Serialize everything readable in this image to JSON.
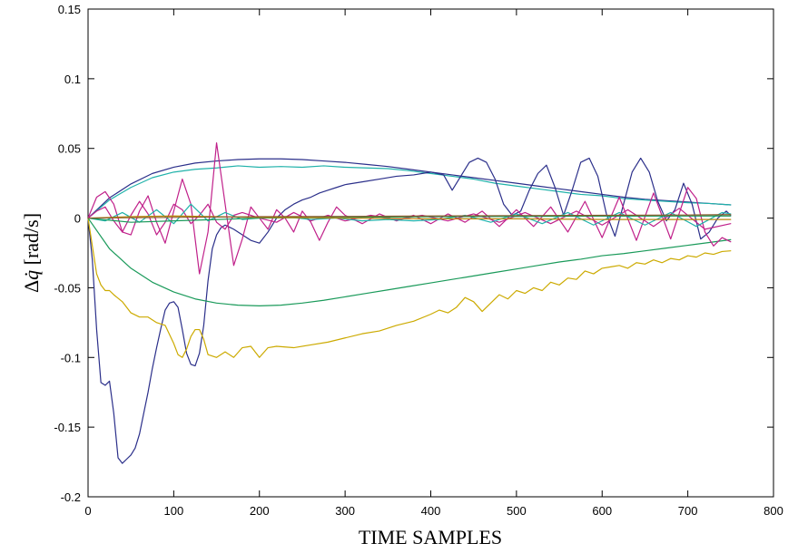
{
  "chart_data": {
    "type": "line",
    "xlabel": "TIME SAMPLES",
    "ylabel": "Δq̇ [rad/s]",
    "ylabel_parts": {
      "symbol": "Δ",
      "var": "q̇",
      "unit": " [rad/s]"
    },
    "xlim": [
      0,
      800
    ],
    "ylim": [
      -0.2,
      0.15
    ],
    "x_ticks": [
      0,
      100,
      200,
      300,
      400,
      500,
      600,
      700,
      800
    ],
    "x_tick_labels": [
      "0",
      "100",
      "200",
      "300",
      "400",
      "500",
      "600",
      "700",
      "800"
    ],
    "y_ticks": [
      -0.2,
      -0.15,
      -0.1,
      -0.05,
      0,
      0.05,
      0.1,
      0.15
    ],
    "y_tick_labels": [
      "-0.2",
      "-0.15",
      "-0.1",
      "-0.05",
      "0",
      "0.05",
      "0.1",
      "0.15"
    ],
    "grid": false,
    "legend": "none",
    "series": [
      {
        "color": "#2b2f8a",
        "x": [
          0,
          25,
          50,
          75,
          100,
          125,
          150,
          175,
          200,
          225,
          250,
          275,
          300,
          325,
          350,
          375,
          400,
          425,
          450,
          475,
          500,
          525,
          550,
          575,
          600,
          625,
          650,
          675,
          700,
          725,
          750
        ],
        "y": [
          0,
          0.0145,
          0.0245,
          0.032,
          0.0365,
          0.0395,
          0.041,
          0.042,
          0.0425,
          0.0425,
          0.042,
          0.041,
          0.04,
          0.0385,
          0.037,
          0.035,
          0.033,
          0.031,
          0.029,
          0.027,
          0.025,
          0.023,
          0.021,
          0.019,
          0.017,
          0.015,
          0.0135,
          0.0125,
          0.0115,
          0.0105,
          0.0095
        ]
      },
      {
        "color": "#20b2aa",
        "x": [
          0,
          25,
          50,
          75,
          100,
          125,
          150,
          175,
          200,
          225,
          250,
          275,
          300,
          325,
          350,
          375,
          400,
          425,
          450,
          475,
          500,
          525,
          550,
          575,
          600,
          625,
          650,
          675,
          700,
          725,
          750
        ],
        "y": [
          0,
          0.013,
          0.022,
          0.029,
          0.033,
          0.035,
          0.036,
          0.0375,
          0.0365,
          0.037,
          0.0365,
          0.0375,
          0.0365,
          0.036,
          0.0355,
          0.034,
          0.032,
          0.03,
          0.028,
          0.025,
          0.023,
          0.021,
          0.019,
          0.017,
          0.016,
          0.014,
          0.013,
          0.012,
          0.011,
          0.0105,
          0.0095
        ]
      },
      {
        "color": "#2b2f8a",
        "x": [
          0,
          5,
          10,
          15,
          20,
          25,
          30,
          35,
          40,
          45,
          50,
          55,
          60,
          65,
          70,
          75,
          80,
          85,
          90,
          95,
          100,
          105,
          110,
          115,
          120,
          125,
          130,
          135,
          140,
          145,
          150,
          155,
          160,
          170,
          180,
          190,
          200,
          210,
          220,
          230,
          240,
          250,
          260,
          270,
          280,
          290,
          300,
          320,
          340,
          360,
          380,
          400,
          415,
          425,
          435,
          445,
          455,
          465,
          475,
          485,
          495,
          505,
          515,
          525,
          535,
          545,
          555,
          565,
          575,
          585,
          595,
          605,
          615,
          625,
          635,
          645,
          655,
          665,
          675,
          685,
          695,
          705,
          715,
          725,
          735,
          745,
          750
        ],
        "y": [
          0,
          -0.03,
          -0.08,
          -0.118,
          -0.12,
          -0.117,
          -0.14,
          -0.172,
          -0.176,
          -0.173,
          -0.17,
          -0.165,
          -0.155,
          -0.14,
          -0.125,
          -0.108,
          -0.093,
          -0.079,
          -0.066,
          -0.061,
          -0.06,
          -0.064,
          -0.08,
          -0.097,
          -0.105,
          -0.106,
          -0.097,
          -0.077,
          -0.045,
          -0.022,
          -0.012,
          -0.007,
          -0.005,
          -0.008,
          -0.012,
          -0.016,
          -0.018,
          -0.01,
          0.0,
          0.006,
          0.01,
          0.013,
          0.015,
          0.018,
          0.02,
          0.022,
          0.024,
          0.026,
          0.028,
          0.03,
          0.031,
          0.033,
          0.031,
          0.02,
          0.03,
          0.04,
          0.043,
          0.04,
          0.028,
          0.01,
          0.002,
          0.005,
          0.02,
          0.032,
          0.038,
          0.022,
          0.002,
          0.02,
          0.04,
          0.043,
          0.03,
          0.003,
          -0.013,
          0.01,
          0.033,
          0.043,
          0.033,
          0.012,
          -0.002,
          0.006,
          0.025,
          0.01,
          -0.015,
          -0.01,
          0.0,
          0.005,
          0.002
        ]
      },
      {
        "color": "#ccaa00",
        "x": [
          0,
          5,
          10,
          15,
          20,
          25,
          30,
          40,
          50,
          60,
          70,
          80,
          90,
          100,
          105,
          110,
          115,
          120,
          125,
          130,
          135,
          140,
          150,
          160,
          170,
          180,
          190,
          200,
          210,
          220,
          240,
          260,
          280,
          300,
          320,
          340,
          360,
          380,
          400,
          410,
          420,
          430,
          440,
          450,
          460,
          470,
          480,
          490,
          500,
          510,
          520,
          530,
          540,
          550,
          560,
          570,
          580,
          590,
          600,
          610,
          620,
          630,
          640,
          650,
          660,
          670,
          680,
          690,
          700,
          710,
          720,
          730,
          740,
          750
        ],
        "y": [
          0,
          -0.02,
          -0.04,
          -0.048,
          -0.052,
          -0.052,
          -0.055,
          -0.06,
          -0.068,
          -0.071,
          -0.071,
          -0.075,
          -0.077,
          -0.09,
          -0.098,
          -0.1,
          -0.094,
          -0.085,
          -0.08,
          -0.08,
          -0.087,
          -0.098,
          -0.1,
          -0.096,
          -0.1,
          -0.093,
          -0.092,
          -0.1,
          -0.093,
          -0.092,
          -0.093,
          -0.091,
          -0.089,
          -0.086,
          -0.083,
          -0.081,
          -0.077,
          -0.074,
          -0.069,
          -0.066,
          -0.068,
          -0.064,
          -0.057,
          -0.06,
          -0.067,
          -0.061,
          -0.055,
          -0.058,
          -0.052,
          -0.054,
          -0.05,
          -0.052,
          -0.046,
          -0.048,
          -0.043,
          -0.044,
          -0.038,
          -0.04,
          -0.036,
          -0.035,
          -0.034,
          -0.036,
          -0.032,
          -0.033,
          -0.03,
          -0.032,
          -0.029,
          -0.03,
          -0.027,
          -0.028,
          -0.025,
          -0.026,
          -0.024,
          -0.0235
        ]
      },
      {
        "color": "#1a9a5a",
        "x": [
          0,
          25,
          50,
          75,
          100,
          125,
          150,
          175,
          200,
          225,
          250,
          275,
          300,
          325,
          350,
          375,
          400,
          425,
          450,
          475,
          500,
          525,
          550,
          575,
          600,
          625,
          650,
          675,
          700,
          725,
          750
        ],
        "y": [
          0,
          -0.022,
          -0.036,
          -0.046,
          -0.053,
          -0.058,
          -0.061,
          -0.0625,
          -0.063,
          -0.0625,
          -0.061,
          -0.059,
          -0.0565,
          -0.054,
          -0.0515,
          -0.049,
          -0.0465,
          -0.044,
          -0.0415,
          -0.039,
          -0.0365,
          -0.034,
          -0.0315,
          -0.0295,
          -0.027,
          -0.0255,
          -0.0235,
          -0.0215,
          -0.0195,
          -0.0175,
          -0.0155
        ]
      },
      {
        "color": "#c0208a",
        "x": [
          0,
          10,
          20,
          30,
          40,
          50,
          60,
          70,
          80,
          90,
          100,
          110,
          120,
          130,
          140,
          150,
          160,
          170,
          180,
          190,
          200,
          210,
          220,
          230,
          240,
          250,
          260,
          270,
          280,
          290,
          300,
          320,
          340,
          360,
          380,
          400,
          420,
          440,
          460,
          480,
          500,
          520,
          540,
          560,
          580,
          600,
          620,
          640,
          660,
          680,
          700,
          710,
          720,
          730,
          740,
          750
        ],
        "y": [
          0,
          0.015,
          0.019,
          0.01,
          -0.01,
          -0.012,
          0.005,
          0.016,
          -0.003,
          -0.018,
          0.005,
          0.028,
          0.01,
          -0.04,
          -0.01,
          0.054,
          0.01,
          -0.034,
          -0.015,
          0.008,
          0.0,
          -0.008,
          0.006,
          0.0,
          -0.01,
          0.005,
          -0.003,
          -0.016,
          -0.003,
          0.008,
          0.002,
          -0.004,
          0.003,
          -0.002,
          0.002,
          -0.004,
          0.003,
          -0.003,
          0.005,
          -0.006,
          0.006,
          -0.006,
          0.008,
          -0.01,
          0.012,
          -0.014,
          0.015,
          -0.016,
          0.018,
          -0.015,
          0.022,
          0.014,
          -0.01,
          -0.02,
          -0.014,
          -0.017
        ]
      },
      {
        "color": "#c0208a",
        "x": [
          0,
          10,
          20,
          30,
          40,
          50,
          60,
          70,
          80,
          90,
          100,
          110,
          120,
          130,
          140,
          150,
          160,
          170,
          180,
          200,
          220,
          240,
          260,
          280,
          300,
          330,
          360,
          390,
          420,
          450,
          480,
          510,
          540,
          570,
          600,
          630,
          660,
          690,
          720,
          750
        ],
        "y": [
          0,
          0.005,
          0.008,
          -0.002,
          -0.01,
          0.002,
          0.012,
          0.003,
          -0.012,
          -0.003,
          0.01,
          0.006,
          -0.004,
          0.002,
          0.01,
          -0.003,
          -0.008,
          0.002,
          0.004,
          0.0,
          -0.003,
          0.004,
          -0.002,
          0.002,
          -0.002,
          0.002,
          -0.001,
          0.002,
          -0.002,
          0.003,
          -0.003,
          0.004,
          -0.004,
          0.005,
          -0.005,
          0.006,
          -0.006,
          0.007,
          -0.008,
          -0.004
        ]
      },
      {
        "color": "#20b2aa",
        "x": [
          0,
          20,
          40,
          60,
          80,
          100,
          120,
          140,
          160,
          180,
          200,
          230,
          260,
          290,
          320,
          350,
          380,
          410,
          440,
          470,
          500,
          530,
          560,
          590,
          620,
          650,
          680,
          710,
          740,
          750
        ],
        "y": [
          0,
          -0.002,
          0.004,
          -0.003,
          0.006,
          -0.004,
          0.01,
          -0.002,
          0.004,
          -0.001,
          0.0,
          0.001,
          -0.001,
          0.0,
          -0.002,
          -0.001,
          -0.002,
          -0.001,
          0.002,
          -0.003,
          0.003,
          -0.004,
          0.004,
          -0.005,
          0.004,
          -0.005,
          0.004,
          -0.006,
          0.004,
          0.003
        ]
      },
      {
        "color": "#1a9a5a",
        "x": [
          0,
          50,
          100,
          150,
          200,
          300,
          400,
          500,
          600,
          700,
          750
        ],
        "y": [
          0,
          -0.003,
          -0.002,
          -0.001,
          0.0,
          0.0005,
          0.001,
          0.0012,
          0.0014,
          0.0015,
          0.0015
        ]
      },
      {
        "color": "#b8860b",
        "x": [
          0,
          50,
          100,
          150,
          200,
          300,
          400,
          500,
          600,
          700,
          750
        ],
        "y": [
          0,
          0.001,
          0.0015,
          0.001,
          0.0005,
          0.0,
          -0.0005,
          -0.0005,
          -0.001,
          -0.001,
          -0.001
        ]
      },
      {
        "color": "#8b5a2b",
        "x": [
          0,
          100,
          200,
          300,
          400,
          500,
          600,
          700,
          750
        ],
        "y": [
          0,
          0.0005,
          0.001,
          0.0012,
          0.0015,
          0.0018,
          0.002,
          0.0022,
          0.0025
        ]
      }
    ]
  }
}
